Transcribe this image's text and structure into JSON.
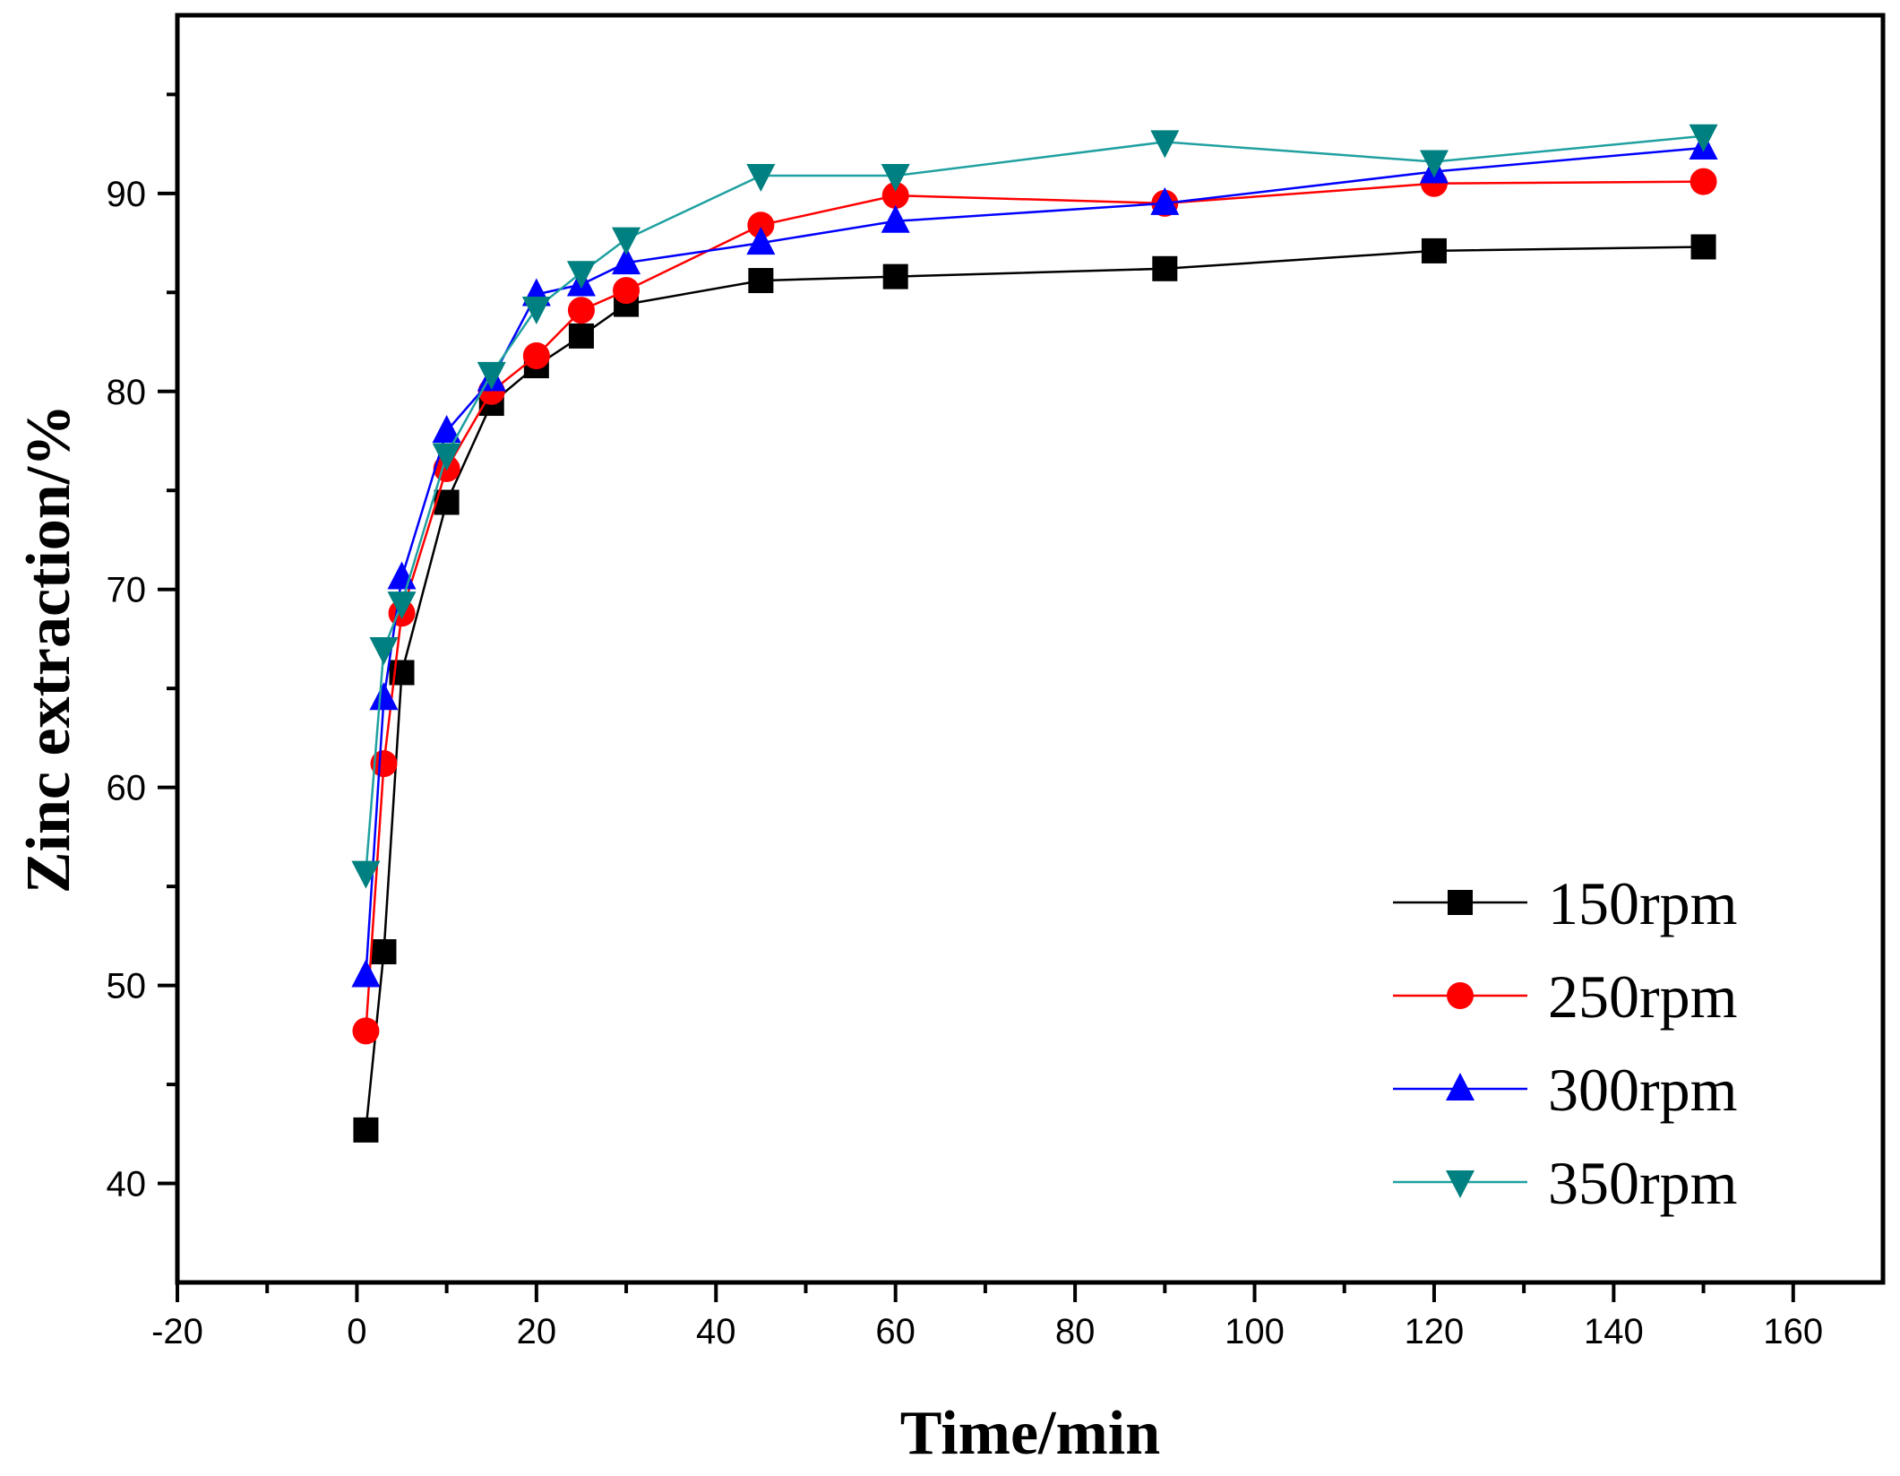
{
  "chart_data": {
    "type": "line",
    "title": "",
    "xlabel": "Time/min",
    "ylabel": "Zinc extraction/%",
    "xlim": [
      -20,
      170
    ],
    "ylim": [
      35,
      99
    ],
    "xticks": [
      -20,
      0,
      20,
      40,
      60,
      80,
      100,
      120,
      140,
      160
    ],
    "xtick_labels": [
      "-20",
      "0",
      "20",
      "40",
      "60",
      "80",
      "100",
      "120",
      "140",
      "160"
    ],
    "yticks": [
      40,
      50,
      60,
      70,
      80,
      90
    ],
    "ytick_labels": [
      "40",
      "50",
      "60",
      "70",
      "80",
      "90"
    ],
    "grid": false,
    "legend_position": "bottom-right",
    "x": [
      1,
      3,
      5,
      10,
      15,
      20,
      25,
      30,
      45,
      60,
      90,
      120,
      150
    ],
    "series": [
      {
        "name": "150rpm",
        "marker": "square",
        "color": "#000000",
        "line_color": "#000000",
        "values": [
          42.7,
          51.7,
          65.8,
          74.4,
          79.4,
          81.3,
          82.8,
          84.4,
          85.6,
          85.8,
          86.2,
          87.1,
          87.3
        ]
      },
      {
        "name": "250rpm",
        "marker": "circle",
        "color": "#ff0000",
        "line_color": "#ff0000",
        "values": [
          47.7,
          61.2,
          68.8,
          76.1,
          80.0,
          81.8,
          84.1,
          85.1,
          88.4,
          89.9,
          89.5,
          90.5,
          90.6
        ]
      },
      {
        "name": "300rpm",
        "marker": "triangle-up",
        "color": "#0000ff",
        "line_color": "#0000ff",
        "values": [
          50.5,
          64.5,
          70.6,
          78.0,
          80.6,
          84.9,
          85.4,
          86.5,
          87.5,
          88.6,
          89.5,
          91.1,
          92.3
        ]
      },
      {
        "name": "350rpm",
        "marker": "triangle-down",
        "color": "#008080",
        "line_color": "#20a0a0",
        "values": [
          55.7,
          67.0,
          69.3,
          76.8,
          80.9,
          84.2,
          86.0,
          87.7,
          90.9,
          90.9,
          92.6,
          91.6,
          92.9
        ]
      }
    ]
  }
}
